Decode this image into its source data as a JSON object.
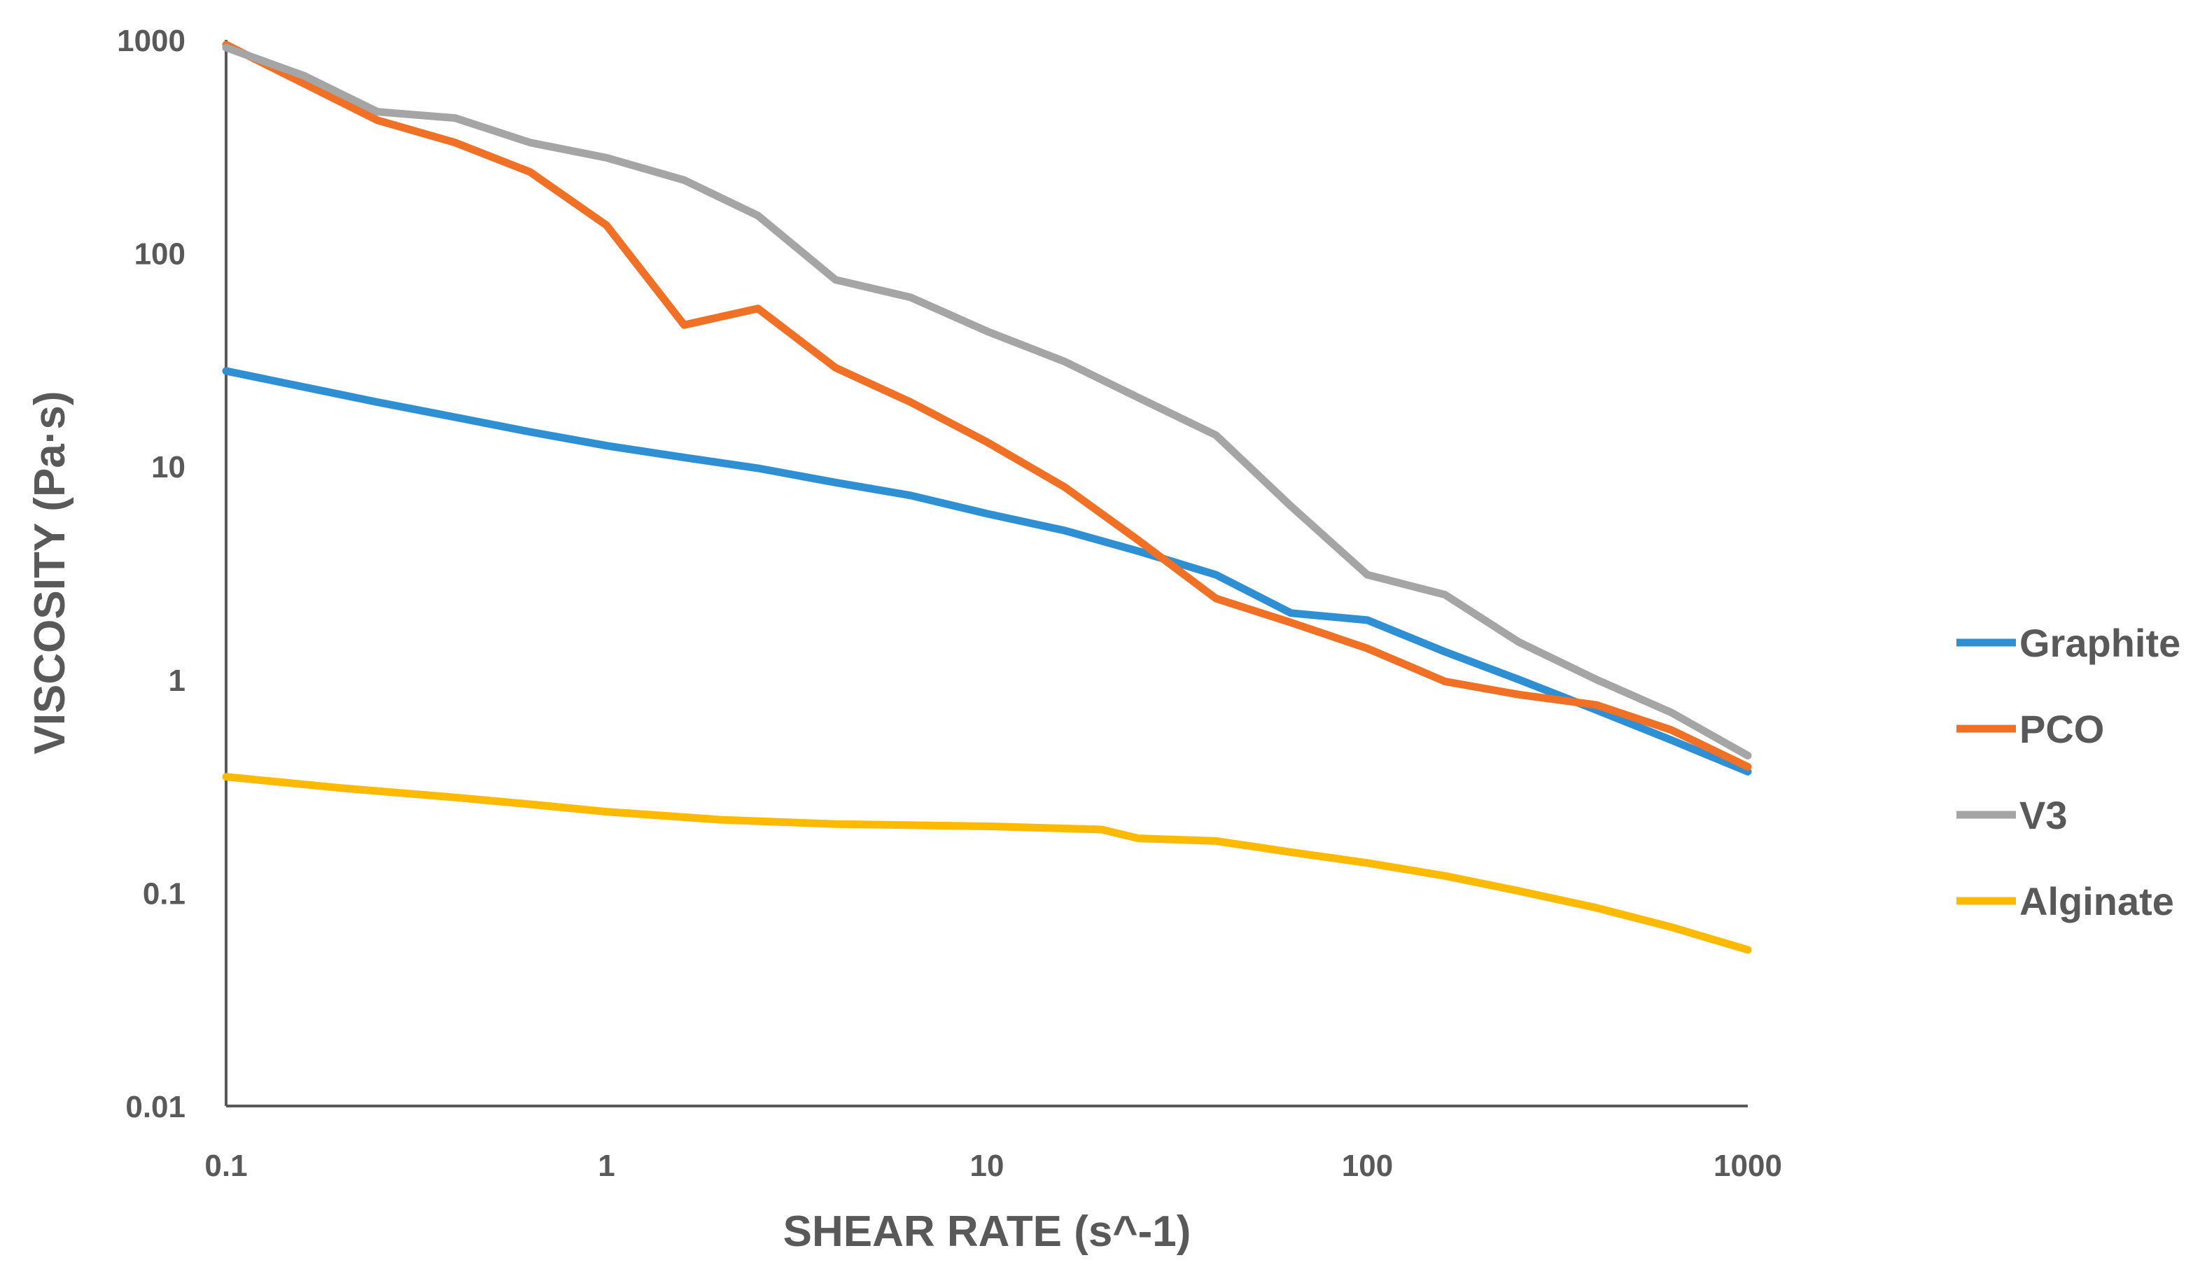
{
  "chart_data": {
    "type": "line",
    "title": "",
    "xlabel": "SHEAR RATE (s^-1)",
    "ylabel": "VISCOSITY (Pa·s)",
    "xscale": "log",
    "yscale": "log",
    "xlim": [
      0.1,
      1000
    ],
    "ylim": [
      0.01,
      1000
    ],
    "x_ticks": [
      0.1,
      1,
      10,
      100,
      1000
    ],
    "x_tick_labels": [
      "0.1",
      "1",
      "10",
      "100",
      "1000"
    ],
    "y_ticks": [
      0.01,
      0.1,
      1,
      10,
      100,
      1000
    ],
    "y_tick_labels": [
      "0.01",
      "0.1",
      "1",
      "10",
      "100",
      "1000"
    ],
    "grid": false,
    "legend_position": "right",
    "series": [
      {
        "name": "Graphite",
        "color": "#2E8FD3",
        "x": [
          0.1,
          0.25,
          0.4,
          0.63,
          1,
          1.6,
          2.5,
          4,
          6.3,
          10,
          16,
          25,
          40,
          63,
          100,
          160,
          250,
          400,
          630,
          1000
        ],
        "y": [
          28,
          20,
          17,
          14.5,
          12.5,
          11,
          9.8,
          8.4,
          7.3,
          6,
          5,
          4,
          3.1,
          2.05,
          1.9,
          1.35,
          1,
          0.72,
          0.52,
          0.37
        ]
      },
      {
        "name": "PCO",
        "color": "#F07025",
        "x": [
          0.1,
          0.25,
          0.4,
          0.63,
          1,
          1.6,
          2.5,
          4,
          6.3,
          10,
          16,
          25,
          40,
          63,
          100,
          160,
          250,
          400,
          630,
          1000
        ],
        "y": [
          950,
          420,
          330,
          240,
          135,
          46,
          55,
          29,
          20,
          13,
          8,
          4.5,
          2.4,
          1.85,
          1.4,
          0.98,
          0.85,
          0.76,
          0.58,
          0.39
        ]
      },
      {
        "name": "V3",
        "color": "#A5A5A5",
        "x": [
          0.1,
          0.16,
          0.25,
          0.4,
          0.63,
          1,
          1.6,
          2.5,
          4,
          6.3,
          10,
          16,
          25,
          40,
          63,
          100,
          160,
          250,
          400,
          630,
          1000
        ],
        "y": [
          920,
          680,
          460,
          430,
          330,
          280,
          220,
          150,
          75,
          62,
          43,
          31,
          21,
          14,
          6.5,
          3.1,
          2.5,
          1.5,
          1,
          0.7,
          0.44
        ]
      },
      {
        "name": "Alginate",
        "color": "#FDBA00",
        "x": [
          0.1,
          0.2,
          0.4,
          0.63,
          1,
          2,
          4,
          10,
          20,
          25,
          40,
          63,
          100,
          160,
          250,
          400,
          630,
          1000
        ],
        "y": [
          0.35,
          0.31,
          0.28,
          0.26,
          0.24,
          0.22,
          0.21,
          0.205,
          0.198,
          0.18,
          0.175,
          0.155,
          0.138,
          0.12,
          0.102,
          0.085,
          0.069,
          0.054
        ]
      }
    ]
  }
}
